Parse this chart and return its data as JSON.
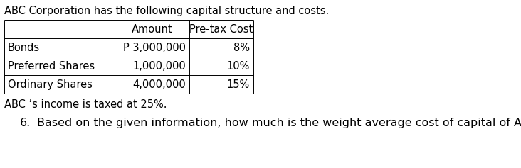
{
  "title_text": "ABC Corporation has the following capital structure and costs.",
  "col_headers": [
    "",
    "Amount",
    "Pre-tax Cost"
  ],
  "rows": [
    [
      "Bonds",
      "P 3,000,000",
      "8%"
    ],
    [
      "Preferred Shares",
      "1,000,000",
      "10%"
    ],
    [
      "Ordinary Shares",
      "4,000,000",
      "15%"
    ]
  ],
  "note_text": "ABC ’s income is taxed at 25%.",
  "question_number": "6.",
  "question_body": "Based on the given information, how much is the weight average cost of capital of ABC?",
  "bg_color": "#ffffff",
  "text_color": "#000000",
  "title_fontsize": 10.5,
  "table_fontsize": 10.5,
  "note_fontsize": 10.5,
  "question_fontsize": 11.5,
  "fig_width": 7.32,
  "fig_height": 2.37,
  "dpi": 100
}
